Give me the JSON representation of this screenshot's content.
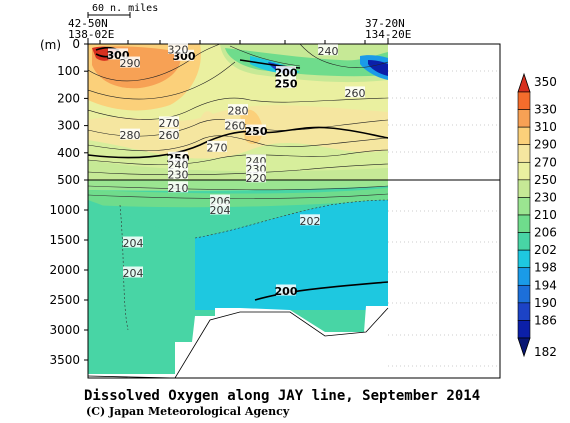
{
  "chart_data": {
    "type": "heatmap",
    "title": "Dissolved Oxygen along JAY line, September 2014",
    "credit": "(C) Japan Meteorological Agency",
    "ylabel": "(m)",
    "scale_bar_label": "60 n. miles",
    "left_station": {
      "lat": "42-50N",
      "lon": "138-02E"
    },
    "right_station": {
      "lat": "37-20N",
      "lon": "134-20E"
    },
    "upper_y_ticks": [
      "0",
      "100",
      "200",
      "300",
      "400",
      "500"
    ],
    "lower_y_ticks": [
      "1000",
      "1500",
      "2000",
      "2500",
      "3000",
      "3500"
    ],
    "ylim_upper": [
      0,
      500
    ],
    "ylim_lower": [
      500,
      3800
    ],
    "colorbar_levels": [
      350,
      330,
      310,
      290,
      270,
      250,
      230,
      210,
      206,
      202,
      198,
      194,
      190,
      186,
      182
    ],
    "colorbar_colors": [
      "#d7301f",
      "#f46d2c",
      "#f7a155",
      "#fbd07a",
      "#f5e6a0",
      "#eaf0a0",
      "#c6e996",
      "#9be591",
      "#6fdc8c",
      "#48d5a5",
      "#1ec8e0",
      "#1a9be8",
      "#1c6fd9",
      "#1c43c6",
      "#0b1fa8",
      "#081673"
    ],
    "contour_labels": [
      {
        "text": "300",
        "x": 0.1,
        "depth": 40,
        "bold": true
      },
      {
        "text": "300",
        "x": 0.32,
        "depth": 45,
        "bold": true
      },
      {
        "text": "320",
        "x": 0.3,
        "depth": 20,
        "bold": false
      },
      {
        "text": "290",
        "x": 0.14,
        "depth": 70,
        "bold": false
      },
      {
        "text": "240",
        "x": 0.8,
        "depth": 25,
        "bold": false
      },
      {
        "text": "200",
        "x": 0.66,
        "depth": 105,
        "bold": true
      },
      {
        "text": "250",
        "x": 0.66,
        "depth": 145,
        "bold": true
      },
      {
        "text": "260",
        "x": 0.89,
        "depth": 180,
        "bold": false
      },
      {
        "text": "280",
        "x": 0.5,
        "depth": 245,
        "bold": false
      },
      {
        "text": "270",
        "x": 0.27,
        "depth": 290,
        "bold": false
      },
      {
        "text": "260",
        "x": 0.49,
        "depth": 300,
        "bold": false
      },
      {
        "text": "250",
        "x": 0.56,
        "depth": 320,
        "bold": true
      },
      {
        "text": "280",
        "x": 0.14,
        "depth": 335,
        "bold": false
      },
      {
        "text": "260",
        "x": 0.27,
        "depth": 335,
        "bold": false
      },
      {
        "text": "270",
        "x": 0.43,
        "depth": 380,
        "bold": false
      },
      {
        "text": "250",
        "x": 0.3,
        "depth": 420,
        "bold": true
      },
      {
        "text": "240",
        "x": 0.3,
        "depth": 445,
        "bold": false
      },
      {
        "text": "230",
        "x": 0.3,
        "depth": 480,
        "bold": false
      },
      {
        "text": "240",
        "x": 0.56,
        "depth": 430,
        "bold": false
      },
      {
        "text": "230",
        "x": 0.56,
        "depth": 460,
        "bold": false
      },
      {
        "text": "220",
        "x": 0.56,
        "depth": 492,
        "bold": false
      },
      {
        "text": "210",
        "x": 0.3,
        "depth": 630,
        "bold": false
      },
      {
        "text": "206",
        "x": 0.44,
        "depth": 850,
        "bold": false
      },
      {
        "text": "204",
        "x": 0.44,
        "depth": 1000,
        "bold": false
      },
      {
        "text": "202",
        "x": 0.74,
        "depth": 1180,
        "bold": false
      },
      {
        "text": "204",
        "x": 0.15,
        "depth": 1550,
        "bold": false
      },
      {
        "text": "204",
        "x": 0.15,
        "depth": 2050,
        "bold": false
      },
      {
        "text": "200",
        "x": 0.66,
        "depth": 2350,
        "bold": true
      }
    ]
  }
}
